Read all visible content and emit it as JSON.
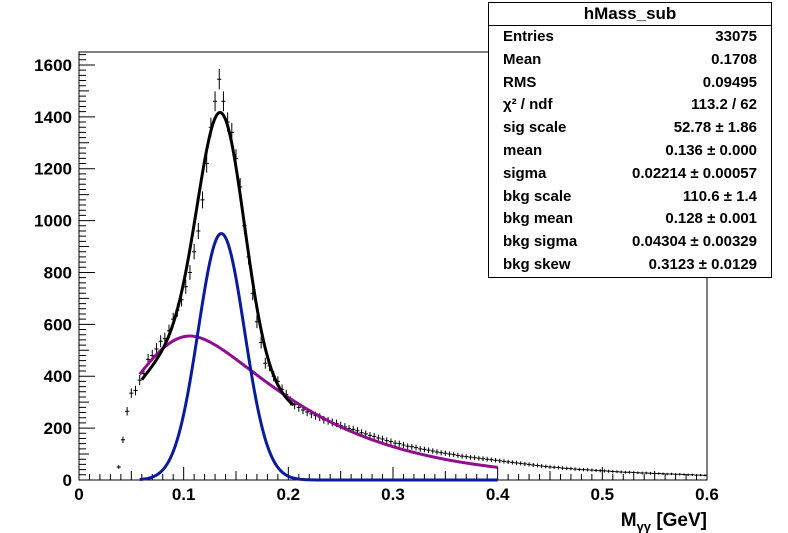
{
  "chart_data": {
    "type": "scatter",
    "xlabel": "M",
    "xlabel_sub": "γγ",
    "xlabel_unit": " [GeV]",
    "xlim": [
      0,
      0.6
    ],
    "ylim": [
      0,
      1650
    ],
    "x_ticks": [
      0,
      0.1,
      0.2,
      0.3,
      0.4,
      0.5,
      0.6
    ],
    "x_tick_labels": [
      "0",
      "0.1",
      "0.2",
      "0.3",
      "0.4",
      "0.5",
      "0.6"
    ],
    "y_ticks": [
      0,
      200,
      400,
      600,
      800,
      1000,
      1200,
      1400,
      1600
    ],
    "y_tick_labels": [
      "0",
      "200",
      "400",
      "600",
      "800",
      "1000",
      "1200",
      "1400",
      "1600"
    ],
    "bin_width": 0.004,
    "data_points": [
      [
        0.034,
        0
      ],
      [
        0.038,
        50
      ],
      [
        0.042,
        155
      ],
      [
        0.046,
        265
      ],
      [
        0.05,
        335
      ],
      [
        0.054,
        345
      ],
      [
        0.058,
        385
      ],
      [
        0.062,
        410
      ],
      [
        0.066,
        465
      ],
      [
        0.07,
        480
      ],
      [
        0.074,
        505
      ],
      [
        0.078,
        535
      ],
      [
        0.082,
        545
      ],
      [
        0.086,
        575
      ],
      [
        0.09,
        620
      ],
      [
        0.094,
        655
      ],
      [
        0.098,
        695
      ],
      [
        0.102,
        745
      ],
      [
        0.106,
        800
      ],
      [
        0.11,
        880
      ],
      [
        0.114,
        960
      ],
      [
        0.118,
        1080
      ],
      [
        0.122,
        1220
      ],
      [
        0.126,
        1360
      ],
      [
        0.13,
        1460
      ],
      [
        0.134,
        1545
      ],
      [
        0.138,
        1460
      ],
      [
        0.142,
        1380
      ],
      [
        0.146,
        1340
      ],
      [
        0.15,
        1240
      ],
      [
        0.154,
        1130
      ],
      [
        0.158,
        980
      ],
      [
        0.162,
        860
      ],
      [
        0.166,
        720
      ],
      [
        0.17,
        610
      ],
      [
        0.174,
        530
      ],
      [
        0.178,
        450
      ],
      [
        0.182,
        440
      ],
      [
        0.186,
        400
      ],
      [
        0.19,
        380
      ],
      [
        0.194,
        350
      ],
      [
        0.198,
        330
      ],
      [
        0.202,
        305
      ],
      [
        0.206,
        290
      ],
      [
        0.21,
        280
      ],
      [
        0.214,
        270
      ],
      [
        0.218,
        262
      ],
      [
        0.222,
        255
      ],
      [
        0.226,
        248
      ],
      [
        0.23,
        242
      ],
      [
        0.234,
        232
      ],
      [
        0.238,
        228
      ],
      [
        0.242,
        222
      ],
      [
        0.246,
        218
      ],
      [
        0.25,
        210
      ],
      [
        0.254,
        205
      ],
      [
        0.258,
        198
      ],
      [
        0.262,
        195
      ],
      [
        0.266,
        190
      ],
      [
        0.27,
        182
      ],
      [
        0.274,
        178
      ],
      [
        0.278,
        172
      ],
      [
        0.282,
        168
      ],
      [
        0.286,
        162
      ],
      [
        0.29,
        158
      ],
      [
        0.294,
        152
      ],
      [
        0.298,
        148
      ],
      [
        0.302,
        142
      ],
      [
        0.306,
        140
      ],
      [
        0.31,
        135
      ],
      [
        0.314,
        130
      ],
      [
        0.318,
        128
      ],
      [
        0.322,
        125
      ],
      [
        0.326,
        120
      ],
      [
        0.33,
        118
      ],
      [
        0.334,
        115
      ],
      [
        0.338,
        112
      ],
      [
        0.342,
        108
      ],
      [
        0.346,
        105
      ],
      [
        0.35,
        103
      ],
      [
        0.354,
        100
      ],
      [
        0.358,
        98
      ],
      [
        0.362,
        95
      ],
      [
        0.366,
        92
      ],
      [
        0.37,
        90
      ],
      [
        0.374,
        88
      ],
      [
        0.378,
        86
      ],
      [
        0.382,
        84
      ],
      [
        0.386,
        82
      ],
      [
        0.39,
        80
      ],
      [
        0.394,
        78
      ],
      [
        0.398,
        76
      ],
      [
        0.402,
        74
      ],
      [
        0.406,
        72
      ],
      [
        0.41,
        70
      ],
      [
        0.414,
        68
      ],
      [
        0.418,
        66
      ],
      [
        0.422,
        64
      ],
      [
        0.426,
        62
      ],
      [
        0.43,
        60
      ],
      [
        0.434,
        58
      ],
      [
        0.438,
        56
      ],
      [
        0.442,
        54
      ],
      [
        0.446,
        52
      ],
      [
        0.45,
        50
      ],
      [
        0.454,
        49
      ],
      [
        0.458,
        48
      ],
      [
        0.462,
        46
      ],
      [
        0.466,
        45
      ],
      [
        0.47,
        44
      ],
      [
        0.474,
        42
      ],
      [
        0.478,
        41
      ],
      [
        0.482,
        40
      ],
      [
        0.486,
        39
      ],
      [
        0.49,
        38
      ],
      [
        0.494,
        37
      ],
      [
        0.498,
        36
      ],
      [
        0.502,
        35
      ],
      [
        0.506,
        34
      ],
      [
        0.51,
        33
      ],
      [
        0.514,
        32
      ],
      [
        0.518,
        31
      ],
      [
        0.522,
        30
      ],
      [
        0.526,
        30
      ],
      [
        0.53,
        29
      ],
      [
        0.534,
        28
      ],
      [
        0.538,
        27
      ],
      [
        0.542,
        27
      ],
      [
        0.546,
        26
      ],
      [
        0.55,
        25
      ],
      [
        0.554,
        25
      ],
      [
        0.558,
        24
      ],
      [
        0.562,
        23
      ],
      [
        0.566,
        23
      ],
      [
        0.57,
        22
      ],
      [
        0.574,
        22
      ],
      [
        0.578,
        21
      ],
      [
        0.582,
        20
      ],
      [
        0.586,
        20
      ],
      [
        0.59,
        19
      ],
      [
        0.594,
        19
      ],
      [
        0.598,
        18
      ]
    ],
    "fit_range": [
      0.058,
      0.4
    ],
    "fit_params": {
      "sig_scale": 52.78,
      "mean": 0.136,
      "sigma": 0.02214,
      "bkg_scale": 110.6,
      "bkg_mean": 0.128,
      "bkg_sigma": 0.04304,
      "bkg_skew": 0.3123
    },
    "colors": {
      "data": "#000000",
      "total_fit": "#000000",
      "signal": "#0a1c9c",
      "background": "#8f0f8f"
    }
  },
  "stats": {
    "title": "hMass_sub",
    "rows": [
      {
        "name": "Entries",
        "value": "33075"
      },
      {
        "name": "Mean",
        "value": "0.1708"
      },
      {
        "name": "RMS",
        "value": "0.09495"
      },
      {
        "name": "χ² / ndf",
        "value": "113.2 / 62"
      },
      {
        "name": "sig scale",
        "value": "52.78 ± 1.86"
      },
      {
        "name": "mean",
        "value": "0.136 ± 0.000"
      },
      {
        "name": "sigma",
        "value": "0.02214 ± 0.00057"
      },
      {
        "name": "bkg scale",
        "value": "110.6 ± 1.4"
      },
      {
        "name": "bkg mean",
        "value": "0.128 ± 0.001"
      },
      {
        "name": "bkg sigma",
        "value": "0.04304 ± 0.00329"
      },
      {
        "name": "bkg skew",
        "value": "0.3123 ± 0.0129"
      }
    ]
  }
}
